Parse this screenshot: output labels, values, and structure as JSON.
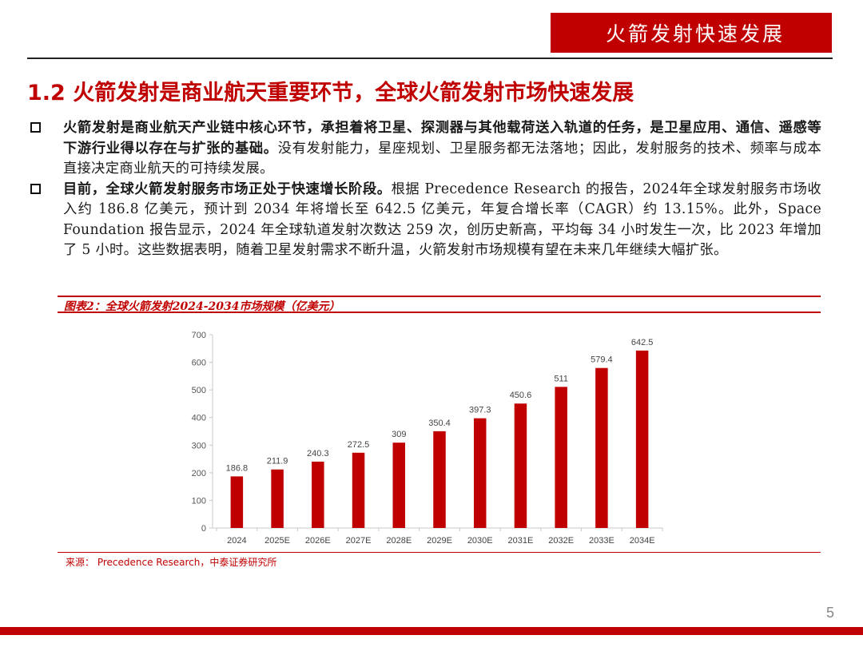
{
  "header": {
    "banner": "火箭发射快速发展"
  },
  "section_title": "1.2 火箭发射是商业航天重要环节，全球火箭发射市场快速发展",
  "bullets": [
    {
      "lead": "火箭发射是商业航天产业链中核心环节，承担着将卫星、探测器与其他载荷送入轨道的任务，是卫星应用、通信、遥感等下游行业得以存在与扩张的基础。",
      "rest": "没有发射能力，星座规划、卫星服务都无法落地；因此，发射服务的技术、频率与成本直接决定商业航天的可持续发展。"
    },
    {
      "lead": "目前，全球火箭发射服务市场正处于快速增长阶段。",
      "rest": "根据 Precedence Research 的报告，2024年全球发射服务市场收入约 186.8 亿美元，预计到 2034 年将增长至 642.5 亿美元，年复合增长率（CAGR）约 13.15%。此外，Space Foundation 报告显示，2024 年全球轨道发射次数达 259 次，创历史新高，平均每 34 小时发生一次，比 2023 年增加了 5 小时。这些数据表明，随着卫星发射需求不断升温，火箭发射市场规模有望在未来几年继续大幅扩张。"
    }
  ],
  "chart_title": "图表2：全球火箭发射2024-2034市场规模（亿美元）",
  "chart_data": {
    "type": "bar",
    "title": "图表2：全球火箭发射2024-2034市场规模（亿美元）",
    "categories": [
      "2024",
      "2025E",
      "2026E",
      "2027E",
      "2028E",
      "2029E",
      "2030E",
      "2031E",
      "2032E",
      "2033E",
      "2034E"
    ],
    "values": [
      186.8,
      211.9,
      240.3,
      272.5,
      309,
      350.4,
      397.3,
      450.6,
      511,
      579.4,
      642.5
    ],
    "value_labels": [
      "186.8",
      "211.9",
      "240.3",
      "272.5",
      "309",
      "350.4",
      "397.3",
      "450.6",
      "511",
      "579.4",
      "642.5"
    ],
    "yticks": [
      "0",
      "100",
      "200",
      "300",
      "400",
      "500",
      "600",
      "700"
    ],
    "ylim": [
      0,
      700
    ],
    "xlabel": "",
    "ylabel": "",
    "grid": false,
    "bar_color": "#c00000"
  },
  "source": "来源： Precedence Research，中泰证券研究所",
  "page_number": "5",
  "colors": {
    "brand_red": "#c00000"
  }
}
